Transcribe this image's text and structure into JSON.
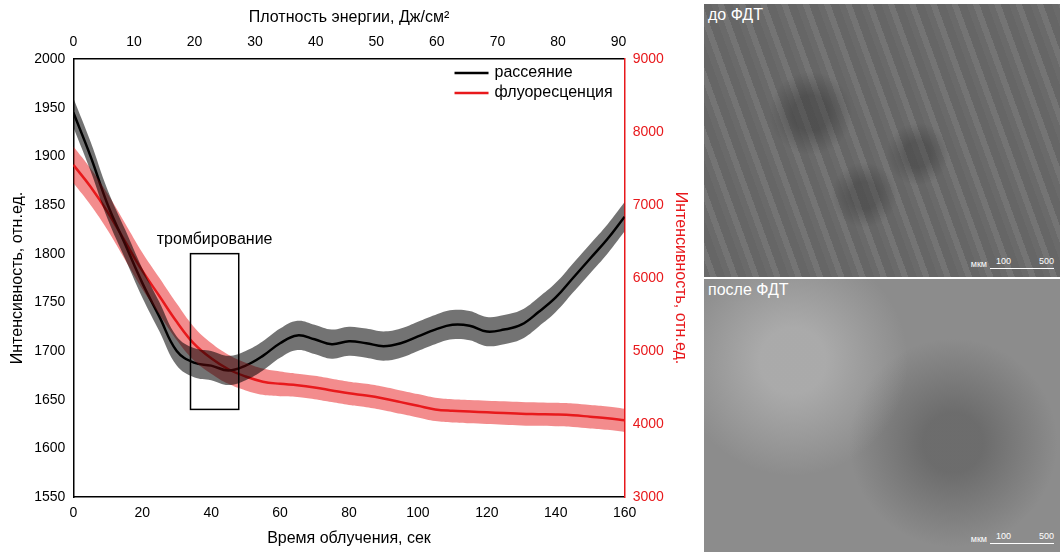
{
  "chart_data": {
    "type": "line",
    "x_label": "Время облучения, сек",
    "x2_label": "Плотность энергии, Дж/см²",
    "y_label": "Интенсивность, отн.ед.",
    "y2_label": "Интенсивность, отн.ед.",
    "xlim": [
      0,
      160
    ],
    "xticks": [
      0,
      20,
      40,
      60,
      80,
      100,
      120,
      140,
      160
    ],
    "x2lim": [
      0,
      91
    ],
    "x2ticks": [
      0,
      10,
      20,
      30,
      40,
      50,
      60,
      70,
      80,
      90
    ],
    "ylim": [
      1550,
      2000
    ],
    "yticks": [
      1550,
      1600,
      1650,
      1700,
      1750,
      1800,
      1850,
      1900,
      1950,
      2000
    ],
    "y2lim": [
      3000,
      9000
    ],
    "y2ticks": [
      3000,
      4000,
      5000,
      6000,
      7000,
      8000,
      9000
    ],
    "grid": false,
    "legend": "upper right",
    "x": [
      0,
      5,
      10,
      15,
      20,
      25,
      30,
      35,
      40,
      45,
      50,
      55,
      60,
      65,
      70,
      75,
      80,
      85,
      90,
      95,
      100,
      105,
      110,
      115,
      120,
      125,
      130,
      135,
      140,
      145,
      150,
      155,
      160
    ],
    "series": [
      {
        "name": "рассеяние",
        "color": "#000000",
        "line_style": "solid",
        "values": [
          1945,
          1900,
          1850,
          1810,
          1770,
          1735,
          1700,
          1688,
          1685,
          1680,
          1685,
          1695,
          1708,
          1716,
          1712,
          1707,
          1710,
          1708,
          1705,
          1708,
          1715,
          1722,
          1727,
          1726,
          1720,
          1722,
          1727,
          1740,
          1755,
          1775,
          1795,
          1815,
          1838
        ],
        "errors": [
          15,
          15,
          15,
          15,
          15,
          15,
          15,
          15,
          15,
          15,
          15,
          15,
          15,
          15,
          15,
          15,
          15,
          15,
          15,
          15,
          15,
          15,
          15,
          15,
          15,
          15,
          15,
          15,
          15,
          15,
          15,
          15,
          15
        ]
      },
      {
        "name": "флуоресценция",
        "color": "#e8191c",
        "line_style": "solid",
        "axis": "y2",
        "values": [
          7550,
          7250,
          6900,
          6500,
          6100,
          5750,
          5400,
          5100,
          4900,
          4750,
          4650,
          4580,
          4550,
          4530,
          4500,
          4460,
          4420,
          4390,
          4350,
          4300,
          4250,
          4200,
          4180,
          4170,
          4160,
          4150,
          4140,
          4135,
          4130,
          4120,
          4100,
          4080,
          4050
        ],
        "errors": [
          250,
          250,
          250,
          250,
          250,
          250,
          250,
          230,
          210,
          200,
          190,
          180,
          170,
          160,
          160,
          160,
          160,
          160,
          160,
          160,
          160,
          160,
          160,
          160,
          160,
          160,
          160,
          160,
          160,
          160,
          160,
          160,
          160
        ]
      }
    ],
    "annotations": [
      {
        "text": "тромбирование",
        "x": [
          34,
          48
        ],
        "y": [
          1640,
          1800
        ]
      }
    ]
  },
  "images": [
    {
      "label": "до ФДТ",
      "scale_bar": {
        "unit": "мкм",
        "ticks": [
          100,
          500
        ]
      }
    },
    {
      "label": "после ФДТ",
      "scale_bar": {
        "unit": "мкм",
        "ticks": [
          100,
          500
        ]
      }
    }
  ]
}
